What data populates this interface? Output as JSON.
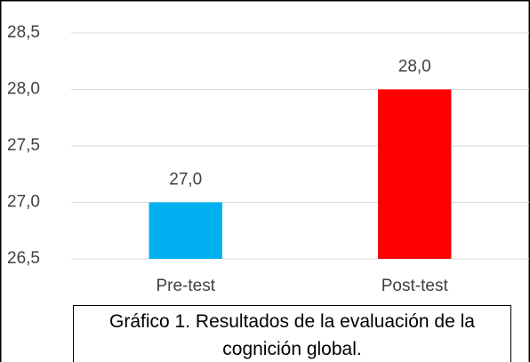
{
  "chart_data": {
    "type": "bar",
    "title": "Gráfico 1. Resultados de la evaluación de la cognición global.",
    "categories": [
      "Pre-test",
      "Post-test"
    ],
    "values": [
      27.0,
      28.0
    ],
    "value_labels": [
      "27,0",
      "28,0"
    ],
    "colors": [
      "#00b0f0",
      "#ff0000"
    ],
    "ylim": [
      26.5,
      28.5
    ],
    "yticks": [
      {
        "value": 26.5,
        "label": "26,5"
      },
      {
        "value": 27.0,
        "label": "27,0"
      },
      {
        "value": 27.5,
        "label": "27,5"
      },
      {
        "value": 28.0,
        "label": "28,0"
      },
      {
        "value": 28.5,
        "label": "28,5"
      }
    ],
    "grid": true
  }
}
